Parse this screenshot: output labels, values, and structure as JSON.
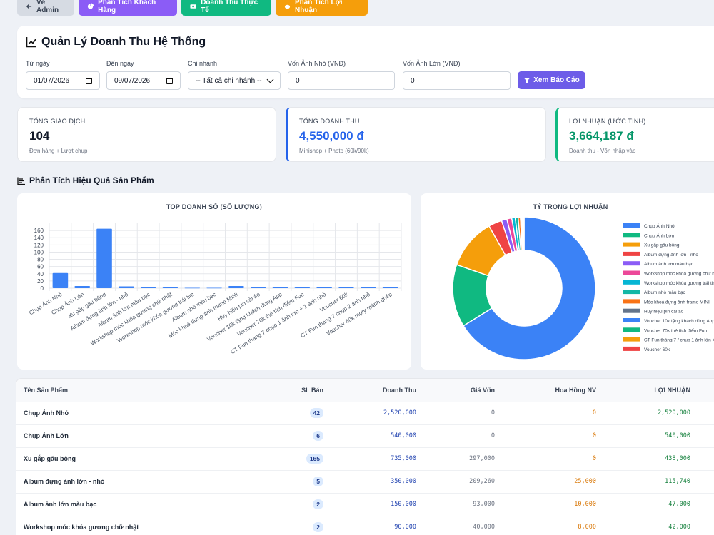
{
  "nav": {
    "back": "Về Admin",
    "customer": "Phân Tích Khách Hàng",
    "revenue": "Doanh Thu Thực Tế",
    "profit": "Phân Tích Lợi Nhuận"
  },
  "filters": {
    "title": "Quản Lý Doanh Thu Hệ Thống",
    "from_label": "Từ ngày",
    "from_value": "01/07/2026",
    "to_label": "Đến ngày",
    "to_value": "09/07/2026",
    "branch_label": "Chi nhánh",
    "branch_value": "-- Tất cả chi nhánh --",
    "small_cost_label": "Vốn Ảnh Nhỏ (VNĐ)",
    "small_cost_value": "0",
    "large_cost_label": "Vốn Ảnh Lớn (VNĐ)",
    "large_cost_value": "0",
    "submit": "Xem Báo Cáo"
  },
  "stats": [
    {
      "label": "Tổng giao dịch",
      "value": "104",
      "sub": "Đơn hàng + Lượt chụp"
    },
    {
      "label": "Tổng doanh thu",
      "value": "4,550,000 đ",
      "sub": "Minishop + Photo (60k/90k)"
    },
    {
      "label": "Lợi nhuận (ước tính)",
      "value": "3,664,187 đ",
      "sub": "Doanh thu - Vốn nhập vào"
    }
  ],
  "section_title": "Phân Tích Hiệu Quả Sản Phẩm",
  "colors": {
    "blue": "#3b82f6",
    "green": "#10b981",
    "orange": "#f59e0b",
    "red": "#ef4444",
    "purple": "#8b5cf6",
    "pink": "#ec4899",
    "cyan": "#06b6d4",
    "teal": "#14b8a6",
    "dark_orange": "#f97316",
    "slate": "#64748b"
  },
  "chart_data": [
    {
      "type": "bar",
      "title": "TOP DOANH SỐ (SỐ LƯỢNG)",
      "categories": [
        "Chụp Ảnh Nhỏ",
        "Chụp Ảnh Lớn",
        "Xu gắp gấu bông",
        "Album đựng ảnh lớn - nhỏ",
        "Album ảnh lớn màu bạc",
        "Workshop móc khóa gương chữ nhật",
        "Workshop móc khóa gương trái tim",
        "Album nhỏ màu bạc",
        "Móc khoá đựng ảnh frame MINI",
        "Huy hiệu pin cài áo",
        "Voucher 10k tặng khách dùng App",
        "Voucher 70k thẻ tích điểm Fun",
        "CT Fun tháng 7 chụp 1 ảnh lớn + 1 ảnh nhỏ",
        "Voucher 60k",
        "CT Fun tháng 7 chụp 2 ảnh nhỏ",
        "Voucher 40k mọry mành ghép"
      ],
      "values": [
        42,
        6,
        165,
        5,
        2,
        2,
        1,
        1,
        6,
        2,
        3,
        2,
        3,
        2,
        2,
        3
      ],
      "ylim": [
        0,
        180
      ],
      "yticks": [
        0,
        20,
        40,
        60,
        80,
        100,
        120,
        140,
        160
      ],
      "color": "#3b82f6"
    },
    {
      "type": "pie",
      "title": "TỶ TRỌNG LỢI NHUẬN",
      "labels": [
        "Chụp Ảnh Nhỏ",
        "Chụp Ảnh Lớn",
        "Xu gắp gấu bông",
        "Album đựng ảnh lớn - nhỏ",
        "Album ảnh lớn màu bạc",
        "Workshop móc khóa gương chữ nhật",
        "Workshop móc khóa gương trái tim",
        "Album nhỏ màu bạc",
        "Móc khoá đựng ảnh frame MINI",
        "Huy hiệu pin cài áo",
        "Voucher 10k tặng khách dùng App",
        "Voucher 70k thẻ tích điểm Fun",
        "CT Fun tháng 7 / chụp 1 ảnh lớn + 1 ảnh nhỏ",
        "Voucher 60k"
      ],
      "values": [
        2520000,
        540000,
        438000,
        115740,
        47000,
        42000,
        30000,
        25000,
        20000,
        10000,
        8000,
        6000,
        4000,
        3000
      ],
      "colors": [
        "#3b82f6",
        "#10b981",
        "#f59e0b",
        "#ef4444",
        "#8b5cf6",
        "#ec4899",
        "#06b6d4",
        "#14b8a6",
        "#f97316",
        "#64748b",
        "#3b82f6",
        "#10b981",
        "#f59e0b",
        "#ef4444"
      ]
    }
  ],
  "table": {
    "headers": [
      "Tên Sản Phẩm",
      "SL Bán",
      "Doanh Thu",
      "Giá Vốn",
      "Hoa Hồng NV",
      "LỢI NHUẬN"
    ],
    "rows": [
      {
        "name": "Chụp Ảnh Nhỏ",
        "qty": "42",
        "rev": "2,520,000",
        "cost": "0",
        "com": "0",
        "profit": "2,520,000"
      },
      {
        "name": "Chụp Ảnh Lớn",
        "qty": "6",
        "rev": "540,000",
        "cost": "0",
        "com": "0",
        "profit": "540,000"
      },
      {
        "name": "Xu gắp gấu bông",
        "qty": "165",
        "rev": "735,000",
        "cost": "297,000",
        "com": "0",
        "profit": "438,000"
      },
      {
        "name": "Album đựng ảnh lớn - nhỏ",
        "qty": "5",
        "rev": "350,000",
        "cost": "209,260",
        "com": "25,000",
        "profit": "115,740"
      },
      {
        "name": "Album ảnh lớn màu bạc",
        "qty": "2",
        "rev": "150,000",
        "cost": "93,000",
        "com": "10,000",
        "profit": "47,000"
      },
      {
        "name": "Workshop móc khóa gương chữ nhật",
        "qty": "2",
        "rev": "90,000",
        "cost": "40,000",
        "com": "8,000",
        "profit": "42,000"
      }
    ]
  }
}
